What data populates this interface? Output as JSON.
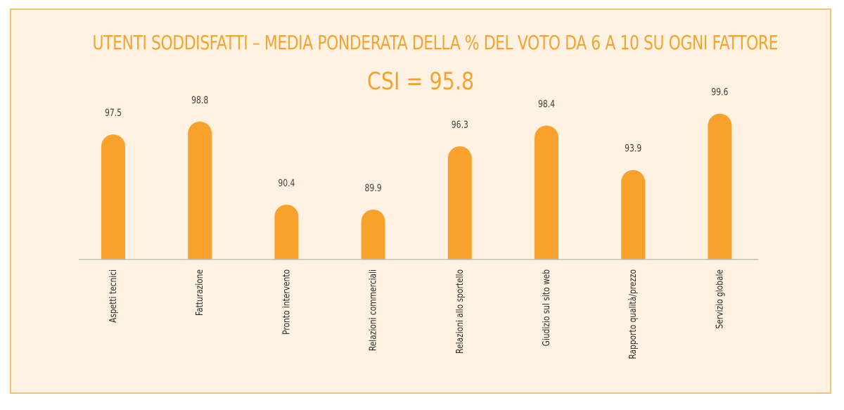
{
  "title": "UTENTI SODDISFATTI – MEDIA PONDERATA DELLA % DEL VOTO DA 6 A 10 SU OGNI FATTORE",
  "subtitle": "CSI = 95.8",
  "colors": {
    "bar": "#f8a22c",
    "text_accent": "#f4a42a",
    "background": "#fff2e3",
    "border": "#f6c271",
    "axis": "#bfbfbf"
  },
  "chart_data": {
    "type": "bar",
    "categories": [
      "Aspetti tecnici",
      "Fatturazione",
      "Pronto intervento",
      "Relazioni commerciali",
      "Relazioni allo sportello",
      "Giudizio sul sito web",
      "Rapporto qualità/prezzo",
      "Servizio globale"
    ],
    "values": [
      97.5,
      98.8,
      90.4,
      89.9,
      96.3,
      98.4,
      93.9,
      99.6
    ],
    "value_labels": [
      "97.5",
      "98.8",
      "90.4",
      "89.9",
      "96.3",
      "98.4",
      "93.9",
      "99.6"
    ],
    "title": "UTENTI SODDISFATTI – MEDIA PONDERATA DELLA % DEL VOTO DA 6 A 10 SU OGNI FATTORE",
    "subtitle": "CSI = 95.8",
    "xlabel": "",
    "ylabel": "",
    "grid": false,
    "legend": "none"
  }
}
